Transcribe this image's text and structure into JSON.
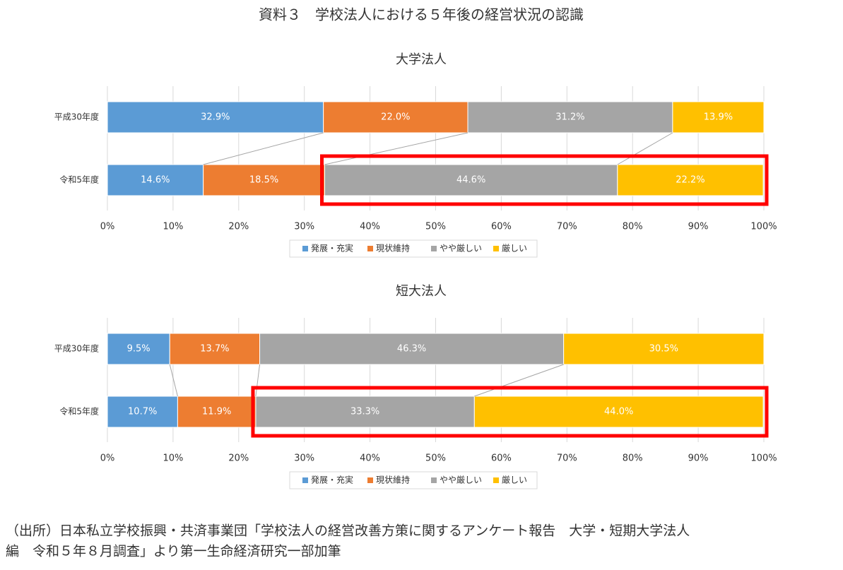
{
  "title": "資料３　学校法人における５年後の経営状況の認識",
  "chart_data": [
    {
      "type": "bar",
      "orientation": "horizontal",
      "stacked": true,
      "title": "大学法人",
      "categories": [
        "平成30年度",
        "令和5年度"
      ],
      "series": [
        {
          "name": "発展・充実",
          "color": "#5b9bd5",
          "values": [
            32.9,
            14.6
          ],
          "value_labels": [
            "32.9%",
            "14.6%"
          ]
        },
        {
          "name": "現状維持",
          "color": "#ed7d31",
          "values": [
            22.0,
            18.5
          ],
          "value_labels": [
            "22.0%",
            "18.5%"
          ]
        },
        {
          "name": "やや厳しい",
          "color": "#a5a5a5",
          "values": [
            31.2,
            44.6
          ],
          "value_labels": [
            "31.2%",
            "44.6%"
          ]
        },
        {
          "name": "厳しい",
          "color": "#ffc000",
          "values": [
            13.9,
            22.2
          ],
          "value_labels": [
            "13.9%",
            "22.2%"
          ]
        }
      ],
      "xlim": [
        0,
        100
      ],
      "xticks": [
        {
          "value": 0,
          "label": "0%"
        },
        {
          "value": 10,
          "label": "10%"
        },
        {
          "value": 20,
          "label": "20%"
        },
        {
          "value": 30,
          "label": "30%"
        },
        {
          "value": 40,
          "label": "40%"
        },
        {
          "value": 50,
          "label": "50%"
        },
        {
          "value": 60,
          "label": "60%"
        },
        {
          "value": 70,
          "label": "70%"
        },
        {
          "value": 80,
          "label": "80%"
        },
        {
          "value": 90,
          "label": "90%"
        },
        {
          "value": 100,
          "label": "100%"
        }
      ],
      "grid": true,
      "legend": "bottom"
    },
    {
      "type": "bar",
      "orientation": "horizontal",
      "stacked": true,
      "title": "短大法人",
      "categories": [
        "平成30年度",
        "令和5年度"
      ],
      "series": [
        {
          "name": "発展・充実",
          "color": "#5b9bd5",
          "values": [
            9.5,
            10.7
          ],
          "value_labels": [
            "9.5%",
            "10.7%"
          ]
        },
        {
          "name": "現状維持",
          "color": "#ed7d31",
          "values": [
            13.7,
            11.9
          ],
          "value_labels": [
            "13.7%",
            "11.9%"
          ]
        },
        {
          "name": "やや厳しい",
          "color": "#a5a5a5",
          "values": [
            46.3,
            33.3
          ],
          "value_labels": [
            "46.3%",
            "33.3%"
          ]
        },
        {
          "name": "厳しい",
          "color": "#ffc000",
          "values": [
            30.5,
            44.0
          ],
          "value_labels": [
            "30.5%",
            "44.0%"
          ]
        }
      ],
      "xlim": [
        0,
        100
      ],
      "xticks": [
        {
          "value": 0,
          "label": "0%"
        },
        {
          "value": 10,
          "label": "10%"
        },
        {
          "value": 20,
          "label": "20%"
        },
        {
          "value": 30,
          "label": "30%"
        },
        {
          "value": 40,
          "label": "40%"
        },
        {
          "value": 50,
          "label": "50%"
        },
        {
          "value": 60,
          "label": "60%"
        },
        {
          "value": 70,
          "label": "70%"
        },
        {
          "value": 80,
          "label": "80%"
        },
        {
          "value": 90,
          "label": "90%"
        },
        {
          "value": 100,
          "label": "100%"
        }
      ],
      "grid": true,
      "legend": "bottom"
    }
  ],
  "source": [
    "（出所）日本私立学校振興・共済事業団「学校法人の経営改善方策に関するアンケート報告　大学・短期大学法人",
    "編　令和５年８月調査」より第一生命経済研究一部加筆"
  ]
}
